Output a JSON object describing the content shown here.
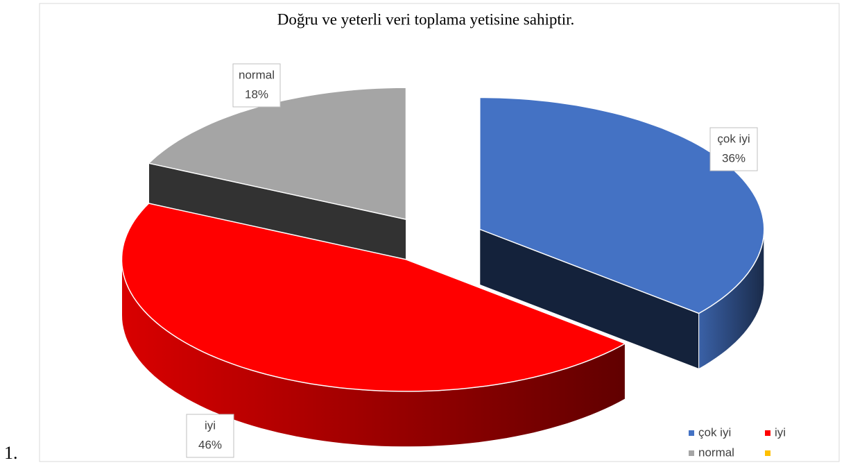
{
  "list_marker": "1.",
  "chart_data": {
    "type": "pie3d",
    "title": "Doğru ve yeterli veri toplama yetisine sahiptir.",
    "categories": [
      "çok iyi",
      "iyi",
      "normal",
      null
    ],
    "values": [
      36,
      46,
      18,
      0
    ],
    "value_labels": [
      "36%",
      "46%",
      "18%",
      null
    ],
    "colors": [
      "#4472c4",
      "#ff0000",
      "#a5a5a5",
      "#ffc000"
    ],
    "legend": "bottom-right"
  }
}
